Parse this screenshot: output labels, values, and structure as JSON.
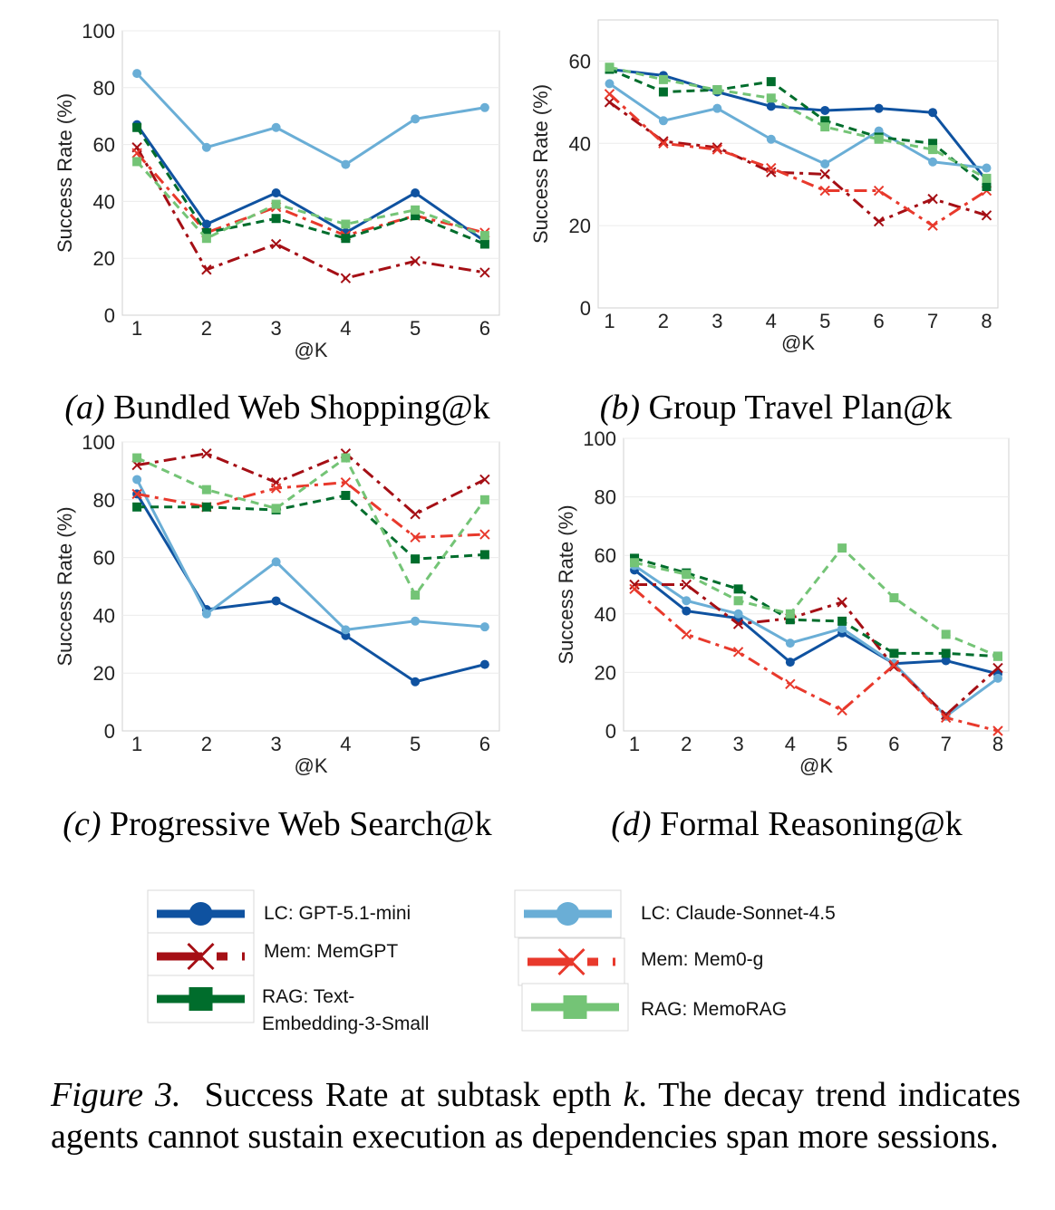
{
  "series_styles": [
    {
      "id": "lc-gpt",
      "color": "#0f52a0",
      "dash": "",
      "marker": "circle"
    },
    {
      "id": "lc-claude",
      "color": "#6aaed6",
      "dash": "",
      "marker": "circle"
    },
    {
      "id": "mem-memgpt",
      "color": "#a50f15",
      "dash": "14 6 4 6",
      "marker": "x"
    },
    {
      "id": "mem-mem0g",
      "color": "#e8392c",
      "dash": "14 6 4 6",
      "marker": "x"
    },
    {
      "id": "rag-text-emb",
      "color": "#006d2c",
      "dash": "9 6",
      "marker": "square"
    },
    {
      "id": "rag-memorag",
      "color": "#74c476",
      "dash": "9 6",
      "marker": "square"
    }
  ],
  "legend": {
    "items": [
      {
        "label": "LC: GPT-5.1-mini"
      },
      {
        "label": "LC: Claude-Sonnet-4.5"
      },
      {
        "label": "Mem: MemGPT"
      },
      {
        "label": "Mem: Mem0-g"
      },
      {
        "label": "RAG: Text-",
        "label2": "Embedding-3-Small"
      },
      {
        "label": "RAG: MemoRAG"
      }
    ]
  },
  "chart_data": [
    {
      "type": "line",
      "caption_letter": "(a)",
      "title": "Bundled Web Shopping@k",
      "xlabel": "@K",
      "ylabel": "Success Rate (%)",
      "x": [
        1,
        2,
        3,
        4,
        5,
        6
      ],
      "ylim": [
        0,
        100
      ],
      "yticks": [
        0,
        20,
        40,
        60,
        80,
        100
      ],
      "grid": true,
      "series": [
        {
          "name": "LC: GPT-5.1-mini",
          "values": [
            67,
            32,
            43,
            29,
            43,
            26
          ]
        },
        {
          "name": "LC: Claude-Sonnet-4.5",
          "values": [
            85,
            59,
            66,
            53,
            69,
            73
          ]
        },
        {
          "name": "Mem: MemGPT",
          "values": [
            59,
            16,
            25,
            13,
            19,
            15
          ]
        },
        {
          "name": "Mem: Mem0-g",
          "values": [
            57,
            29,
            38,
            28,
            35,
            29
          ]
        },
        {
          "name": "RAG: Text-Embedding-3-Small",
          "values": [
            66,
            29,
            34,
            27,
            35,
            25
          ]
        },
        {
          "name": "RAG: MemoRAG",
          "values": [
            54,
            27,
            39,
            32,
            37,
            28
          ]
        }
      ]
    },
    {
      "type": "line",
      "caption_letter": "(b)",
      "title": "Group Travel Plan@k",
      "xlabel": "@K",
      "ylabel": "Success Rate (%)",
      "x": [
        1,
        2,
        3,
        4,
        5,
        6,
        7,
        8
      ],
      "ylim": [
        0,
        70
      ],
      "yticks": [
        0,
        20,
        40,
        60
      ],
      "grid": true,
      "series": [
        {
          "name": "LC: GPT-5.1-mini",
          "values": [
            58,
            56.5,
            52.5,
            49,
            48,
            48.5,
            47.5,
            31
          ]
        },
        {
          "name": "LC: Claude-Sonnet-4.5",
          "values": [
            54.5,
            45.5,
            48.5,
            41,
            35,
            43,
            35.5,
            34
          ]
        },
        {
          "name": "Mem: MemGPT",
          "values": [
            50,
            40.5,
            39,
            33,
            32.5,
            21,
            26.5,
            22.5
          ]
        },
        {
          "name": "Mem: Mem0-g",
          "values": [
            52,
            40,
            38.5,
            34,
            28.5,
            28.5,
            20,
            28.5
          ]
        },
        {
          "name": "RAG: Text-Embedding-3-Small",
          "values": [
            58,
            52.5,
            53,
            55,
            45.5,
            41.5,
            40,
            29.5
          ]
        },
        {
          "name": "RAG: MemoRAG",
          "values": [
            58.5,
            55.5,
            53,
            51,
            44,
            41,
            38.5,
            31.5
          ]
        }
      ]
    },
    {
      "type": "line",
      "caption_letter": "(c)",
      "title": "Progressive Web Search@k",
      "xlabel": "@K",
      "ylabel": "Success Rate (%)",
      "x": [
        1,
        2,
        3,
        4,
        5,
        6
      ],
      "ylim": [
        0,
        100
      ],
      "yticks": [
        0,
        20,
        40,
        60,
        80,
        100
      ],
      "grid": true,
      "series": [
        {
          "name": "LC: GPT-5.1-mini",
          "values": [
            82,
            42,
            45,
            33,
            17,
            23
          ]
        },
        {
          "name": "LC: Claude-Sonnet-4.5",
          "values": [
            87,
            40.5,
            58.5,
            35,
            38,
            36
          ]
        },
        {
          "name": "Mem: MemGPT",
          "values": [
            92,
            96,
            86,
            96,
            75,
            87
          ]
        },
        {
          "name": "Mem: Mem0-g",
          "values": [
            82,
            77.5,
            84,
            86,
            67,
            68
          ]
        },
        {
          "name": "RAG: Text-Embedding-3-Small",
          "values": [
            77.5,
            77.5,
            76.5,
            81.5,
            59.5,
            61
          ]
        },
        {
          "name": "RAG: MemoRAG",
          "values": [
            94.5,
            83.5,
            77,
            94.5,
            47,
            80
          ]
        }
      ]
    },
    {
      "type": "line",
      "caption_letter": "(d)",
      "title": "Formal Reasoning@k",
      "xlabel": "@K",
      "ylabel": "Success Rate (%)",
      "x": [
        1,
        2,
        3,
        4,
        5,
        6,
        7,
        8
      ],
      "ylim": [
        0,
        100
      ],
      "yticks": [
        0,
        20,
        40,
        60,
        80,
        100
      ],
      "grid": true,
      "series": [
        {
          "name": "LC: GPT-5.1-mini",
          "values": [
            55,
            41,
            38.5,
            23.5,
            33.5,
            23,
            24,
            19.5
          ]
        },
        {
          "name": "LC: Claude-Sonnet-4.5",
          "values": [
            56.5,
            44.5,
            40,
            30,
            35,
            23,
            5,
            18
          ]
        },
        {
          "name": "Mem: MemGPT",
          "values": [
            50,
            50,
            36.5,
            38.5,
            44,
            22,
            5.5,
            21.5
          ]
        },
        {
          "name": "Mem: Mem0-g",
          "values": [
            48.5,
            33,
            27,
            16,
            7,
            22.5,
            4.5,
            0
          ]
        },
        {
          "name": "RAG: Text-Embedding-3-Small",
          "values": [
            59,
            54,
            48.5,
            38,
            37.5,
            26.5,
            26.5,
            25.5
          ]
        },
        {
          "name": "RAG: MemoRAG",
          "values": [
            57.5,
            53.5,
            44.5,
            40,
            62.5,
            45.5,
            33,
            25.5
          ]
        }
      ]
    }
  ],
  "caption": {
    "label": "Figure 3.",
    "text_pre": "Success Rate at subtask epth ",
    "k": "k",
    "text_post": ". The decay trend indicates agents cannot sustain execution as dependencies span more sessions."
  }
}
